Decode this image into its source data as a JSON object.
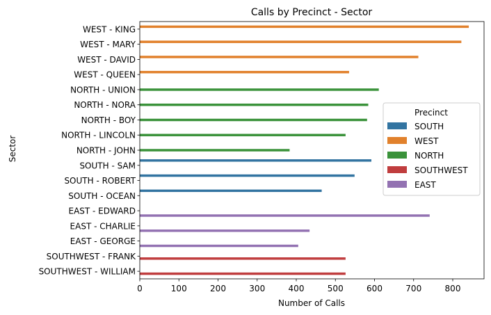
{
  "chart_data": {
    "type": "bar",
    "orientation": "horizontal",
    "title": "Calls by Precinct - Sector",
    "xlabel": "Number of Calls",
    "ylabel": "Sector",
    "xlim": [
      0,
      880
    ],
    "xticks": [
      0,
      100,
      200,
      300,
      400,
      500,
      600,
      700,
      800
    ],
    "grid": false,
    "legend": {
      "title": "Precinct",
      "placement": "center-right"
    },
    "categories": [
      "WEST - KING",
      "WEST - MARY",
      "WEST - DAVID",
      "WEST - QUEEN",
      "NORTH - UNION",
      "NORTH - NORA",
      "NORTH - BOY",
      "NORTH - LINCOLN",
      "NORTH - JOHN",
      "SOUTH - SAM",
      "SOUTH - ROBERT",
      "SOUTH - OCEAN",
      "EAST - EDWARD",
      "EAST - CHARLIE",
      "EAST - GEORGE",
      "SOUTHWEST - FRANK",
      "SOUTHWEST - WILLIAM"
    ],
    "series": [
      {
        "name": "SOUTH",
        "color": "#3274a1",
        "values": [
          null,
          null,
          null,
          null,
          null,
          null,
          null,
          null,
          null,
          592,
          549,
          465,
          null,
          null,
          null,
          null,
          null
        ]
      },
      {
        "name": "WEST",
        "color": "#e1812c",
        "values": [
          841,
          822,
          712,
          535,
          null,
          null,
          null,
          null,
          null,
          null,
          null,
          null,
          null,
          null,
          null,
          null,
          null
        ]
      },
      {
        "name": "NORTH",
        "color": "#3a923a",
        "values": [
          null,
          null,
          null,
          null,
          611,
          584,
          581,
          526,
          383,
          null,
          null,
          null,
          null,
          null,
          null,
          null,
          null
        ]
      },
      {
        "name": "SOUTHWEST",
        "color": "#c03d3e",
        "values": [
          null,
          null,
          null,
          null,
          null,
          null,
          null,
          null,
          null,
          null,
          null,
          null,
          null,
          null,
          null,
          526,
          526
        ]
      },
      {
        "name": "EAST",
        "color": "#9372b2",
        "values": [
          null,
          null,
          null,
          null,
          null,
          null,
          null,
          null,
          null,
          null,
          null,
          null,
          741,
          434,
          405,
          null,
          null
        ]
      }
    ]
  }
}
